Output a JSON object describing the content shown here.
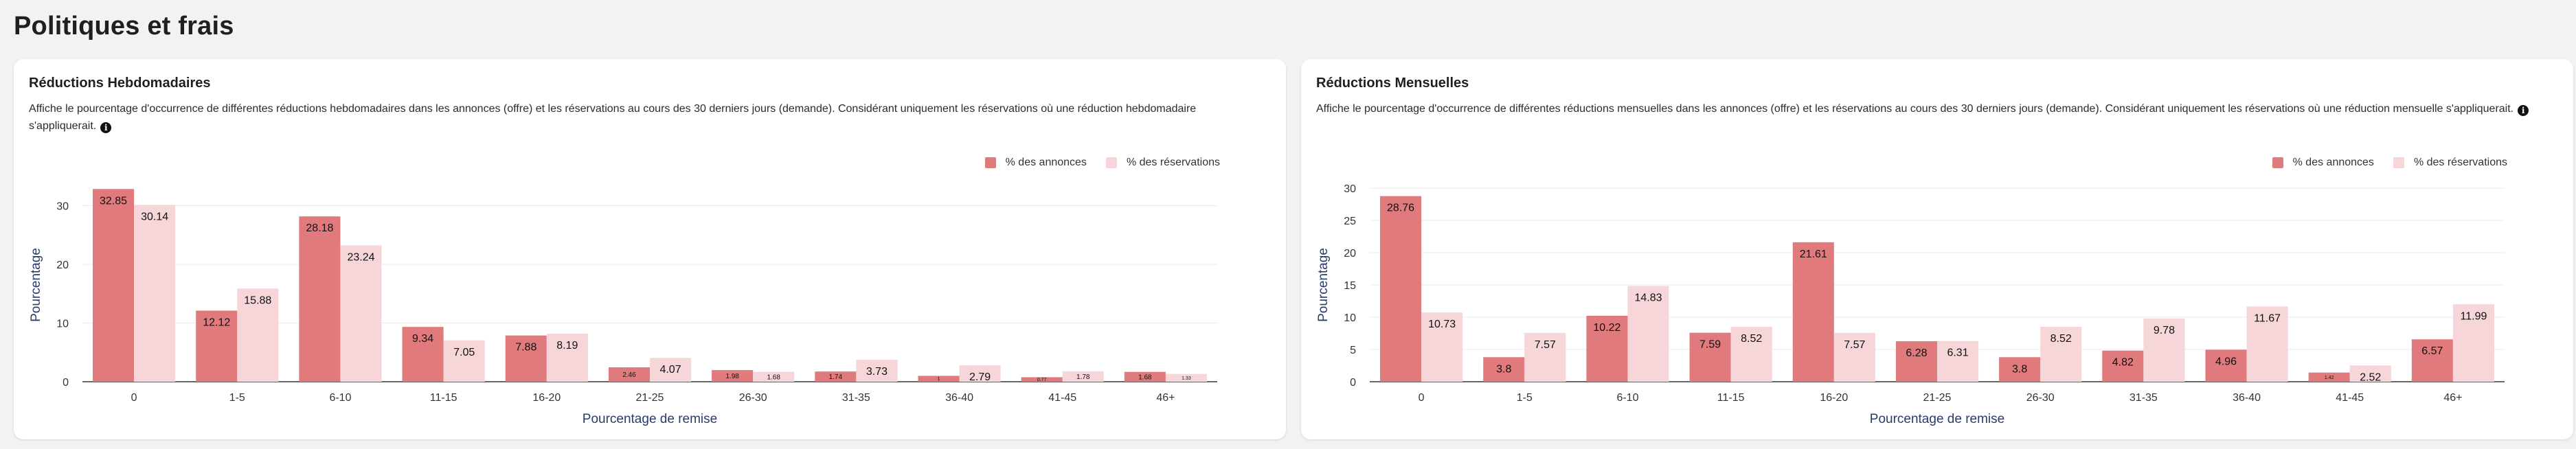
{
  "page": {
    "title": "Politiques et frais"
  },
  "colors": {
    "listings": "#e07a7c",
    "bookings": "#f6d6d8",
    "grid": "#ebebeb",
    "axis": "#333333"
  },
  "legend": {
    "listings": "% des annonces",
    "bookings": "% des réservations"
  },
  "info_icon": "info-circle-icon",
  "cards": [
    {
      "title": "Réductions Hebdomadaires",
      "description": "Affiche le pourcentage d'occurrence de différentes réductions hebdomadaires dans les annonces (offre) et les réservations au cours des 30 derniers jours (demande). Considérant uniquement les réservations où une réduction hebdomadaire s'appliquerait.",
      "chart_data": {
        "type": "bar",
        "xlabel": "Pourcentage de remise",
        "ylabel": "Pourcentage",
        "ylim": [
          0,
          33
        ],
        "yticks": [
          0,
          10,
          20,
          30
        ],
        "grid": true,
        "legend_position": "top-right",
        "categories": [
          "0",
          "1-5",
          "6-10",
          "11-15",
          "16-20",
          "21-25",
          "26-30",
          "31-35",
          "36-40",
          "41-45",
          "46+"
        ],
        "series": [
          {
            "name": "% des annonces",
            "values": [
              32.85,
              12.12,
              28.18,
              9.34,
              7.88,
              2.46,
              1.98,
              1.74,
              1.0,
              0.77,
              1.68
            ]
          },
          {
            "name": "% des réservations",
            "values": [
              30.14,
              15.88,
              23.24,
              7.05,
              8.19,
              4.07,
              1.68,
              3.73,
              2.79,
              1.78,
              1.33
            ]
          }
        ]
      }
    },
    {
      "title": "Réductions Mensuelles",
      "description": "Affiche le pourcentage d'occurrence de différentes réductions mensuelles dans les annonces (offre) et les réservations au cours des 30 derniers jours (demande). Considérant uniquement les réservations où une réduction mensuelle s'appliquerait.",
      "chart_data": {
        "type": "bar",
        "xlabel": "Pourcentage de remise",
        "ylabel": "Pourcentage",
        "ylim": [
          0,
          30
        ],
        "yticks": [
          0,
          5,
          10,
          15,
          20,
          25,
          30
        ],
        "grid": true,
        "legend_position": "top-right",
        "categories": [
          "0",
          "1-5",
          "6-10",
          "11-15",
          "16-20",
          "21-25",
          "26-30",
          "31-35",
          "36-40",
          "41-45",
          "46+"
        ],
        "series": [
          {
            "name": "% des annonces",
            "values": [
              28.76,
              3.8,
              10.22,
              7.59,
              21.61,
              6.28,
              3.8,
              4.82,
              4.96,
              1.42,
              6.57
            ]
          },
          {
            "name": "% des réservations",
            "values": [
              10.73,
              7.57,
              14.83,
              8.52,
              7.57,
              6.31,
              8.52,
              9.78,
              11.67,
              2.52,
              11.99
            ]
          }
        ]
      }
    }
  ]
}
